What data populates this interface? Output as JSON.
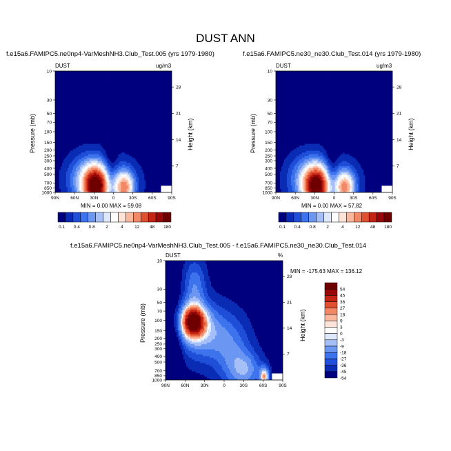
{
  "figure": {
    "title": "DUST ANN",
    "panels": [
      {
        "id": "top-left",
        "case": "f.e15a6.FAMIPC5.ne0np4-VarMeshNH3.Club_Test.005 (yrs 1979-1980)",
        "var_label": "DUST",
        "units": "ug/m3",
        "stats": "MIN =   0.00  MAX =  59.08",
        "colorbar_labels": [
          "0.1",
          "0.4",
          "0.8",
          "2",
          "4",
          "12",
          "48",
          "180"
        ]
      },
      {
        "id": "top-right",
        "case": "f.e15a6.FAMIPC5.ne30_ne30.Club_Test.014 (yrs 1979-1980)",
        "var_label": "DUST",
        "units": "ug/m3",
        "stats": "MIN =   0.00  MAX =  57.82",
        "colorbar_labels": [
          "0.1",
          "0.4",
          "0.8",
          "2",
          "4",
          "12",
          "48",
          "180"
        ]
      },
      {
        "id": "bottom-diff",
        "case": "f.e15a6.FAMIPC5.ne0np4-VarMeshNH3.Club_Test.005 - f.e15a6.FAMIPC5.ne30_ne30.Club_Test.014",
        "var_label": "DUST",
        "units": "%",
        "stats": "MIN = -175.63  MAX = 136.12",
        "colorbar_labels": [
          "54",
          "45",
          "36",
          "27",
          "18",
          "9",
          "3",
          "0",
          "-3",
          "-9",
          "-18",
          "-27",
          "-36",
          "-45",
          "-54"
        ]
      }
    ]
  },
  "chart_data": [
    {
      "type": "heatmap",
      "title": "f.e15a6.FAMIPC5.ne0np4-VarMeshNH3.Club_Test.005 (yrs 1979-1980)",
      "ylabel": "Pressure (mb)",
      "y2label": "Height (km)",
      "x_ticks": [
        "90N",
        "60N",
        "30N",
        "0",
        "30S",
        "60S",
        "90S"
      ],
      "y_ticks": [
        "10",
        "30",
        "50",
        "70",
        "100",
        "150",
        "200",
        "250",
        "300",
        "400",
        "500",
        "700",
        "850",
        "1000"
      ],
      "y2_ticks": [
        "28",
        "21",
        "14",
        "7"
      ],
      "log_pressure_axis": true,
      "ylim": [
        1000,
        10
      ],
      "levels": [
        0.1,
        0.2,
        0.4,
        0.6,
        0.8,
        1,
        2,
        3,
        4,
        6,
        12,
        24,
        48,
        96,
        180
      ],
      "min": 0.0,
      "max": 59.08
    },
    {
      "type": "heatmap",
      "title": "f.e15a6.FAMIPC5.ne30_ne30.Club_Test.014 (yrs 1979-1980)",
      "ylabel": "Pressure (mb)",
      "y2label": "Height (km)",
      "x_ticks": [
        "90N",
        "60N",
        "30N",
        "0",
        "30S",
        "60S",
        "90S"
      ],
      "y_ticks": [
        "10",
        "30",
        "50",
        "70",
        "100",
        "150",
        "200",
        "250",
        "300",
        "400",
        "500",
        "700",
        "850",
        "1000"
      ],
      "y2_ticks": [
        "28",
        "21",
        "14",
        "7"
      ],
      "log_pressure_axis": true,
      "ylim": [
        1000,
        10
      ],
      "levels": [
        0.1,
        0.2,
        0.4,
        0.6,
        0.8,
        1,
        2,
        3,
        4,
        6,
        12,
        24,
        48,
        96,
        180
      ],
      "min": 0.0,
      "max": 57.82
    },
    {
      "type": "heatmap",
      "title": "f.e15a6.FAMIPC5.ne0np4-VarMeshNH3.Club_Test.005 - f.e15a6.FAMIPC5.ne30_ne30.Club_Test.014",
      "ylabel": "Pressure (mb)",
      "y2label": "Height (km)",
      "x_ticks": [
        "90N",
        "60N",
        "30N",
        "0",
        "30S",
        "60S",
        "90S"
      ],
      "y_ticks": [
        "10",
        "30",
        "50",
        "70",
        "100",
        "150",
        "200",
        "250",
        "300",
        "400",
        "500",
        "700",
        "850",
        "1000"
      ],
      "y2_ticks": [
        "28",
        "21",
        "14",
        "7"
      ],
      "log_pressure_axis": true,
      "ylim": [
        1000,
        10
      ],
      "levels": [
        -54,
        -45,
        -36,
        -27,
        -18,
        -9,
        -3,
        0,
        3,
        9,
        18,
        27,
        36,
        45,
        54
      ],
      "min": -175.63,
      "max": 136.12
    }
  ],
  "colors": {
    "abs_scale": [
      "#00007f",
      "#0a2cb4",
      "#1f4fd8",
      "#3d73ec",
      "#6b97f3",
      "#a6c0f7",
      "#dde8fb",
      "#ffffff",
      "#fde3d8",
      "#f9b89e",
      "#f28866",
      "#e0502f",
      "#c42414",
      "#99080a",
      "#6e0000"
    ],
    "diff_scale": [
      "#6e0000",
      "#990808",
      "#c42414",
      "#e0502f",
      "#f28866",
      "#f9b89e",
      "#fde3d8",
      "#ffffff",
      "#dde8fb",
      "#a6c0f7",
      "#6b97f3",
      "#3d73ec",
      "#1f4fd8",
      "#0a2cb4",
      "#00007f"
    ]
  }
}
